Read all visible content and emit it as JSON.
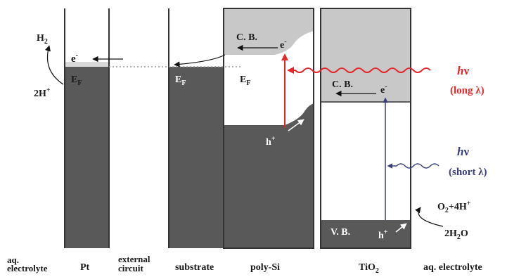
{
  "labels": {
    "h2": "H",
    "h2_sub": "2",
    "two_h_plus": "2H",
    "two_h_plus_sup": "+",
    "pt_e": "e",
    "pt_e_sup": "-",
    "pt_ef": "E",
    "pt_ef_sub": "F",
    "sub_ef": "E",
    "sub_ef_sub": "F",
    "si_ef": "E",
    "si_ef_sub": "F",
    "si_cb": "C. B.",
    "si_e": "e",
    "si_e_sup": "-",
    "si_h": "h",
    "si_h_sup": "+",
    "tio2_cb": "C. B.",
    "tio2_e": "e",
    "tio2_e_sup": "-",
    "tio2_vb": "V. B.",
    "tio2_h": "h",
    "tio2_h_sup": "+",
    "hv_long_h": "h",
    "hv_long_nu": "ν",
    "long_lambda": "(long λ)",
    "hv_short_h": "h",
    "hv_short_nu": "ν",
    "short_lambda": "(short λ)",
    "o2_a": "O",
    "o2_sub": "2",
    "o2_b": "+4H",
    "o2_sup": "+",
    "h2o_a": "2H",
    "h2o_sub": "2",
    "h2o_b": "O"
  },
  "bottom_labels": {
    "aq_electrolyte_left_1": "aq.",
    "aq_electrolyte_left_2": "electrolyte",
    "pt": "Pt",
    "external_circuit_1": "external",
    "external_circuit_2": "circuit",
    "substrate": "substrate",
    "poly_si": "poly-Si",
    "tio2": "TiO",
    "tio2_sub": "2",
    "aq_electrolyte_right": "aq. electrolyte"
  },
  "colors": {
    "dark_band": "#595959",
    "light_band": "#c8c8c8",
    "red_photon": "#e4262a",
    "blue_photon": "#3a3f7c"
  }
}
